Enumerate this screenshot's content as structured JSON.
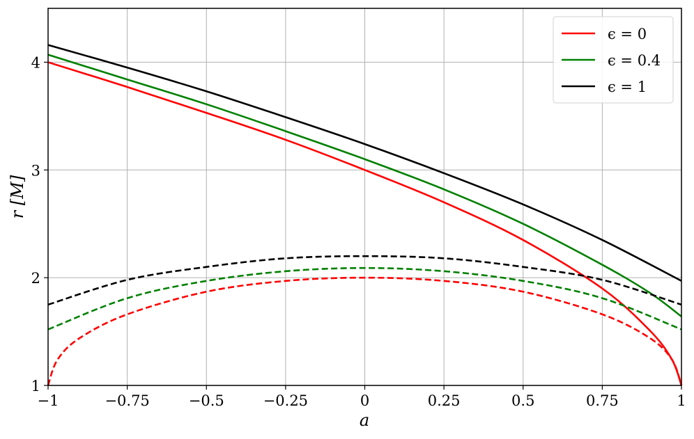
{
  "chart_data": {
    "type": "line",
    "xlabel": "a",
    "ylabel": "r [M]",
    "xlim": [
      -1,
      1
    ],
    "ylim": [
      1,
      4.5
    ],
    "grid": true,
    "legend_position": "top-right",
    "x_ticks": [
      {
        "value": -1,
        "label": "−1"
      },
      {
        "value": -0.75,
        "label": "−0.75"
      },
      {
        "value": -0.5,
        "label": "−0.5"
      },
      {
        "value": -0.25,
        "label": "−0.25"
      },
      {
        "value": 0,
        "label": "0"
      },
      {
        "value": 0.25,
        "label": "0.25"
      },
      {
        "value": 0.5,
        "label": "0.5"
      },
      {
        "value": 0.75,
        "label": "0.75"
      },
      {
        "value": 1,
        "label": "1"
      }
    ],
    "y_ticks": [
      {
        "value": 1,
        "label": "1"
      },
      {
        "value": 2,
        "label": "2"
      },
      {
        "value": 3,
        "label": "3"
      },
      {
        "value": 4,
        "label": "4"
      }
    ],
    "series": [
      {
        "name": "ϵ = 0",
        "color": "#ff0000",
        "style": "solid",
        "x": [
          -1,
          -0.75,
          -0.5,
          -0.25,
          0,
          0.25,
          0.5,
          0.75,
          0.9,
          0.97,
          1
        ],
        "y": [
          4.0,
          3.77,
          3.53,
          3.28,
          3.0,
          2.7,
          2.35,
          1.9,
          1.51,
          1.24,
          1.0
        ]
      },
      {
        "name": "ϵ = 0.4",
        "color": "#008000",
        "style": "solid",
        "x": [
          -1,
          -0.75,
          -0.5,
          -0.25,
          0,
          0.25,
          0.5,
          0.75,
          0.9,
          1
        ],
        "y": [
          4.07,
          3.84,
          3.61,
          3.36,
          3.1,
          2.82,
          2.5,
          2.12,
          1.86,
          1.64
        ]
      },
      {
        "name": "ϵ = 1",
        "color": "#000000",
        "style": "solid",
        "x": [
          -1,
          -0.75,
          -0.5,
          -0.25,
          0,
          0.25,
          0.5,
          0.75,
          1
        ],
        "y": [
          4.16,
          3.95,
          3.73,
          3.49,
          3.24,
          2.97,
          2.68,
          2.35,
          1.97
        ]
      },
      {
        "name": "",
        "color": "#ff0000",
        "style": "dashed",
        "x": [
          -1,
          -0.97,
          -0.9,
          -0.75,
          -0.5,
          -0.25,
          0,
          0.25,
          0.5,
          0.75,
          0.9,
          0.97,
          1
        ],
        "y": [
          1.0,
          1.24,
          1.44,
          1.66,
          1.87,
          1.97,
          2.0,
          1.97,
          1.87,
          1.66,
          1.44,
          1.24,
          1.0
        ]
      },
      {
        "name": "",
        "color": "#008000",
        "style": "dashed",
        "x": [
          -1,
          -0.75,
          -0.5,
          -0.25,
          0,
          0.25,
          0.5,
          0.75,
          1
        ],
        "y": [
          1.52,
          1.81,
          1.97,
          2.06,
          2.09,
          2.06,
          1.97,
          1.81,
          1.52
        ]
      },
      {
        "name": "",
        "color": "#000000",
        "style": "dashed",
        "x": [
          -1,
          -0.75,
          -0.5,
          -0.25,
          0,
          0.25,
          0.5,
          0.75,
          1
        ],
        "y": [
          1.75,
          1.98,
          2.1,
          2.18,
          2.2,
          2.18,
          2.1,
          1.98,
          1.75
        ]
      }
    ]
  }
}
